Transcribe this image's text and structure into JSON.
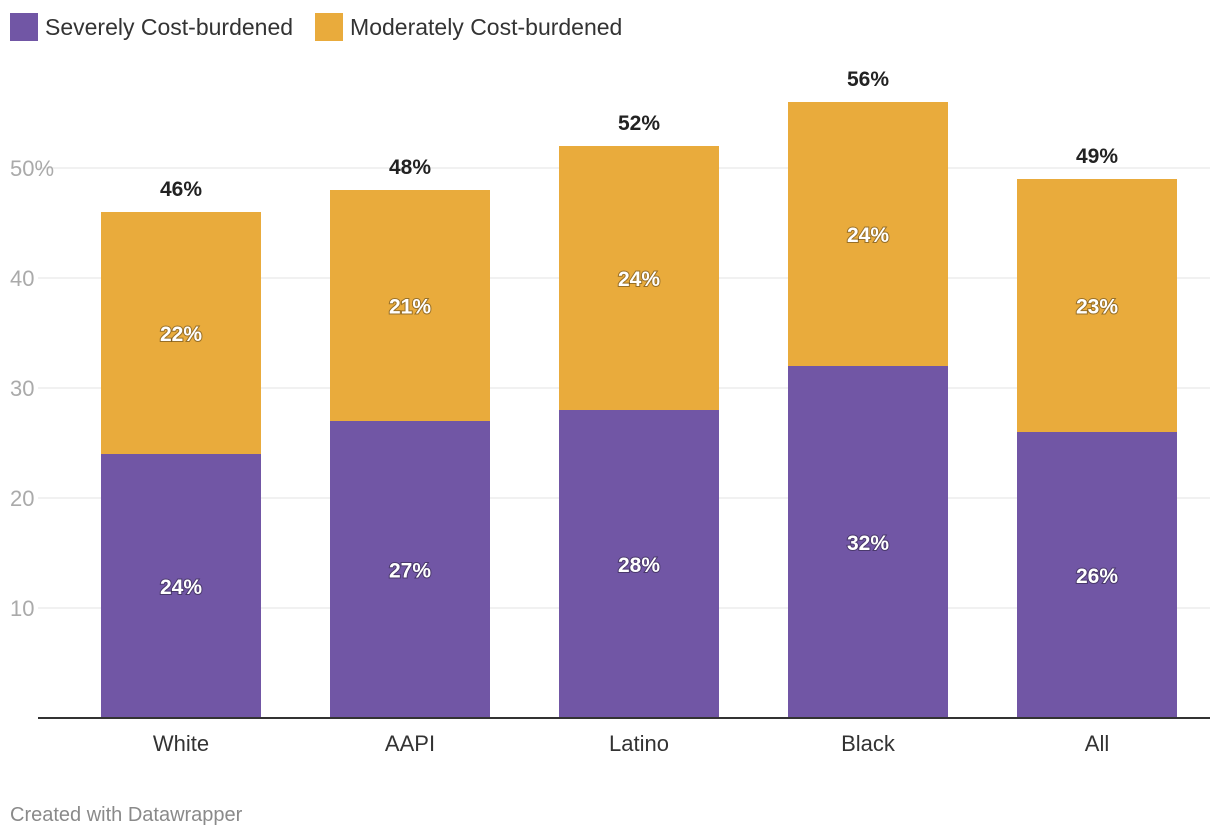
{
  "legend": [
    {
      "label": "Severely Cost-burdened",
      "color": "#7156a5"
    },
    {
      "label": "Moderately Cost-burdened",
      "color": "#e9ab3c"
    }
  ],
  "footer": {
    "text": "Created with Datawrapper"
  },
  "chart_data": {
    "type": "bar",
    "stacked": true,
    "title": "",
    "xlabel": "",
    "ylabel": "",
    "ylim": [
      0,
      60
    ],
    "y_ticks": [
      10,
      20,
      30,
      40,
      50
    ],
    "y_tick_labels": [
      "10",
      "20",
      "30",
      "40",
      "50%"
    ],
    "grid": true,
    "legend_position": "top-left",
    "categories": [
      "White",
      "AAPI",
      "Latino",
      "Black",
      "All"
    ],
    "series": [
      {
        "name": "Severely Cost-burdened",
        "color": "#7156a5",
        "values": [
          24,
          27,
          28,
          32,
          26
        ],
        "labels": [
          "24%",
          "27%",
          "28%",
          "32%",
          "26%"
        ]
      },
      {
        "name": "Moderately Cost-burdened",
        "color": "#e9ab3c",
        "values": [
          22,
          21,
          24,
          24,
          23
        ],
        "labels": [
          "22%",
          "21%",
          "24%",
          "24%",
          "23%"
        ]
      }
    ],
    "totals": [
      46,
      48,
      52,
      56,
      49
    ],
    "total_labels": [
      "46%",
      "48%",
      "52%",
      "56%",
      "49%"
    ]
  }
}
